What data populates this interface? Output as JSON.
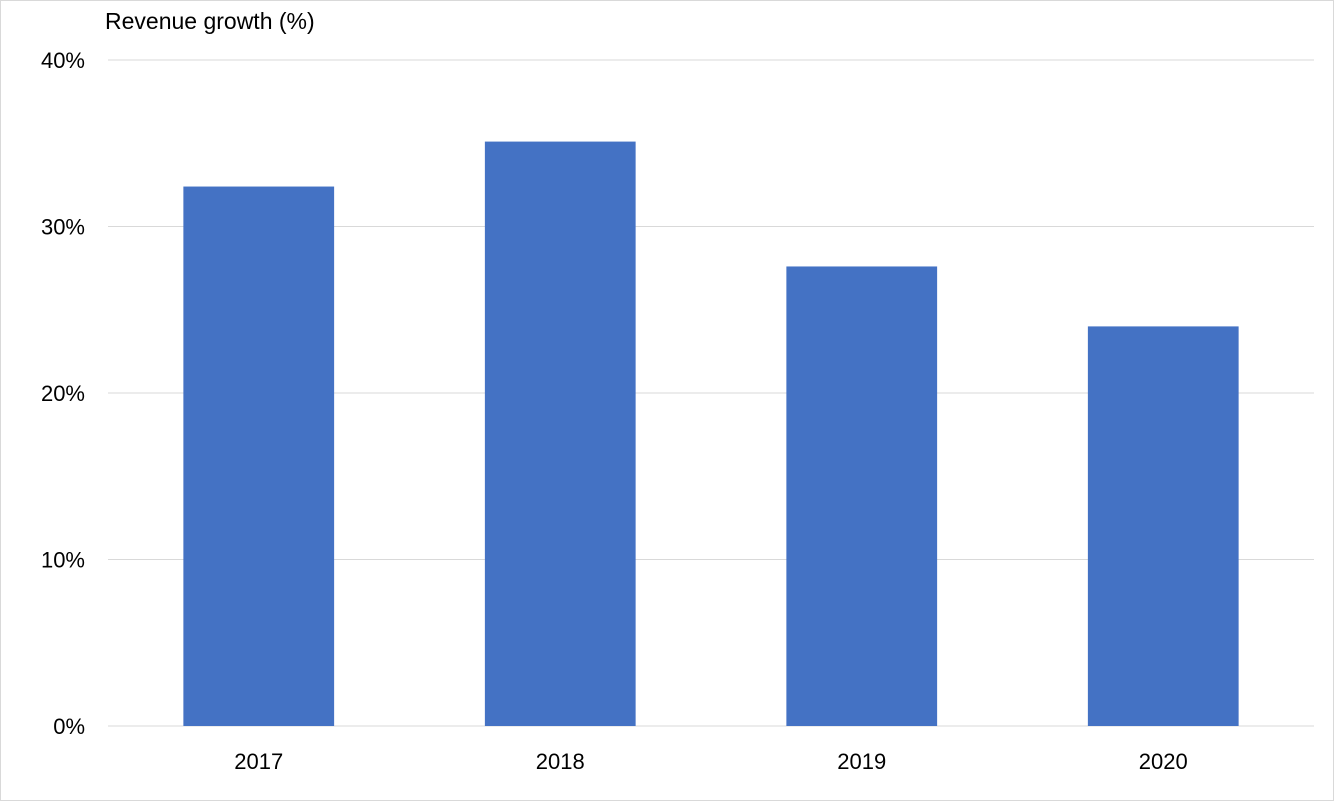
{
  "chart_data": {
    "type": "bar",
    "title": "Revenue growth (%)",
    "xlabel": "",
    "ylabel": "",
    "categories": [
      "2017",
      "2018",
      "2019",
      "2020"
    ],
    "series": [
      {
        "values": [
          32.4,
          35.1,
          27.6,
          24.0
        ]
      }
    ],
    "ylim": [
      0,
      40
    ],
    "yticks": [
      0,
      10,
      20,
      30,
      40
    ],
    "ytick_labels": [
      "0%",
      "10%",
      "20%",
      "30%",
      "40%"
    ],
    "grid": true,
    "legend": "none",
    "bar_color": "#4472C4",
    "grid_color": "#d9d9d9"
  }
}
